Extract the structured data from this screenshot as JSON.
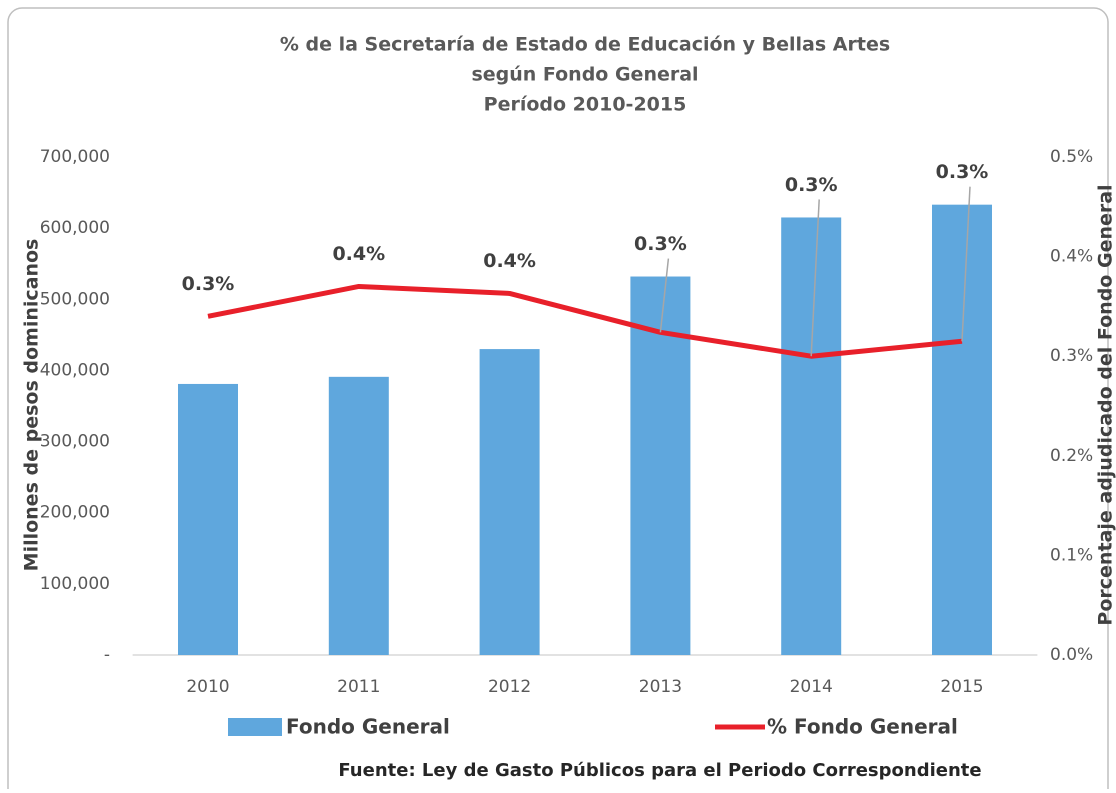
{
  "chart_data": {
    "type": "bar-line",
    "title": [
      "% de la Secretaría de Estado de Educación y Bellas Artes",
      "según Fondo General",
      "Período 2010-2015"
    ],
    "y_label": "Millones de pesos dominicanos",
    "y2_label": "Porcentaje adjudicado del Fondo General",
    "source": "Fuente: Ley de Gasto Públicos para el Periodo Correspondiente",
    "categories": [
      "2010",
      "2011",
      "2012",
      "2013",
      "2014",
      "2015"
    ],
    "series": [
      {
        "name": "Fondo General",
        "type": "bar",
        "color": "#5fa7dd",
        "values": [
          381000,
          391000,
          430000,
          532000,
          615000,
          633000
        ]
      },
      {
        "name": "% Fondo General",
        "type": "line",
        "axis": "y2",
        "color": "#e8202a",
        "values": [
          0.34,
          0.37,
          0.363,
          0.324,
          0.3,
          0.315
        ],
        "value_labels": [
          "0.3%",
          "0.4%",
          "0.4%",
          "0.3%",
          "0.3%",
          "0.3%"
        ]
      }
    ],
    "ylim": [
      0,
      700000
    ],
    "yticks": [
      {
        "value": 0,
        "label": "-"
      },
      {
        "value": 100000,
        "label": "100,000"
      },
      {
        "value": 200000,
        "label": "200,000"
      },
      {
        "value": 300000,
        "label": "300,000"
      },
      {
        "value": 400000,
        "label": "400,000"
      },
      {
        "value": 500000,
        "label": "500,000"
      },
      {
        "value": 600000,
        "label": "600,000"
      },
      {
        "value": 700000,
        "label": "700,000"
      }
    ],
    "y2lim": [
      0,
      0.5
    ],
    "y2ticks": [
      {
        "value": 0,
        "label": "0.0%"
      },
      {
        "value": 0.1,
        "label": "0.1%"
      },
      {
        "value": 0.2,
        "label": "0.2%"
      },
      {
        "value": 0.3,
        "label": "0.3%"
      },
      {
        "value": 0.4,
        "label": "0.4%"
      },
      {
        "value": 0.5,
        "label": "0.5%"
      }
    ],
    "grid": false
  }
}
